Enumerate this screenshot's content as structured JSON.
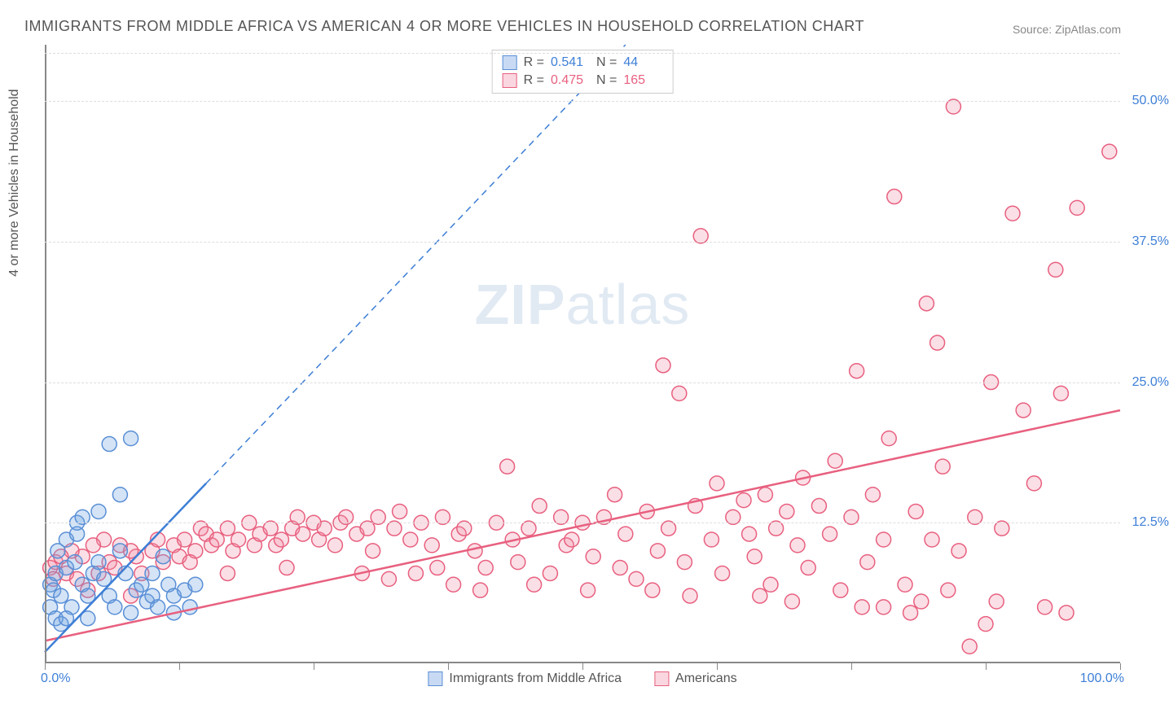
{
  "title": "IMMIGRANTS FROM MIDDLE AFRICA VS AMERICAN 4 OR MORE VEHICLES IN HOUSEHOLD CORRELATION CHART",
  "source_label": "Source: ",
  "source_name": "ZipAtlas.com",
  "y_axis_label": "4 or more Vehicles in Household",
  "watermark_left": "ZIP",
  "watermark_right": "atlas",
  "stats": {
    "series1": {
      "r_label": "R =",
      "r_value": "0.541",
      "n_label": "N =",
      "n_value": "44"
    },
    "series2": {
      "r_label": "R =",
      "r_value": "0.475",
      "n_label": "N =",
      "n_value": "165"
    }
  },
  "legend": {
    "series1": "Immigrants from Middle Africa",
    "series2": "Americans"
  },
  "chart": {
    "type": "scatter",
    "xlim": [
      0,
      100
    ],
    "ylim": [
      0,
      55
    ],
    "x_tick_labels": {
      "min": "0.0%",
      "max": "100.0%"
    },
    "y_ticks": [
      12.5,
      25.0,
      37.5,
      50.0
    ],
    "y_tick_labels": [
      "12.5%",
      "25.0%",
      "37.5%",
      "50.0%"
    ],
    "x_tick_positions": [
      0,
      12.5,
      25,
      37.5,
      50,
      62.5,
      75,
      87.5,
      100
    ],
    "background_color": "#ffffff",
    "grid_color": "#dddddd",
    "axis_label_color": "#3e7fd6",
    "marker_radius": 9,
    "marker_stroke_width": 1.5,
    "series1_fill": "rgba(112,165,225,0.30)",
    "series1_stroke": "#5a8fd6",
    "series2_fill": "rgba(240,140,165,0.28)",
    "series2_stroke": "#e8607f",
    "trend1_color": "#3e7fd6",
    "trend1_width": 2.5,
    "trend1_dash_from_x": 15,
    "trend1_slope": 1.0,
    "trend1_intercept": 1.0,
    "trend2_color": "#e8607f",
    "trend2_width": 2.5,
    "trend2_slope": 0.205,
    "trend2_intercept": 2.0,
    "series1_points": [
      [
        0.5,
        7.0
      ],
      [
        0.8,
        6.5
      ],
      [
        1.0,
        8.0
      ],
      [
        1.5,
        6.0
      ],
      [
        2.0,
        8.5
      ],
      [
        2.0,
        11.0
      ],
      [
        2.5,
        5.0
      ],
      [
        3.0,
        11.5
      ],
      [
        3.0,
        12.5
      ],
      [
        3.5,
        7.0
      ],
      [
        3.5,
        13.0
      ],
      [
        4.0,
        4.0
      ],
      [
        4.0,
        6.0
      ],
      [
        4.5,
        8.0
      ],
      [
        5.0,
        9.0
      ],
      [
        5.0,
        13.5
      ],
      [
        5.5,
        7.5
      ],
      [
        6.0,
        6.0
      ],
      [
        6.0,
        19.5
      ],
      [
        6.5,
        5.0
      ],
      [
        7.0,
        10.0
      ],
      [
        7.0,
        15.0
      ],
      [
        7.5,
        8.0
      ],
      [
        8.0,
        4.5
      ],
      [
        8.0,
        20.0
      ],
      [
        8.5,
        6.5
      ],
      [
        9.0,
        7.0
      ],
      [
        9.5,
        5.5
      ],
      [
        10.0,
        8.0
      ],
      [
        10.0,
        6.0
      ],
      [
        10.5,
        5.0
      ],
      [
        11.0,
        9.5
      ],
      [
        11.5,
        7.0
      ],
      [
        12.0,
        6.0
      ],
      [
        12.0,
        4.5
      ],
      [
        13.0,
        6.5
      ],
      [
        13.5,
        5.0
      ],
      [
        14.0,
        7.0
      ],
      [
        0.5,
        5.0
      ],
      [
        1.0,
        4.0
      ],
      [
        1.5,
        3.5
      ],
      [
        2.0,
        4.0
      ],
      [
        1.2,
        10.0
      ],
      [
        2.8,
        9.0
      ]
    ],
    "series2_points": [
      [
        0.5,
        8.5
      ],
      [
        1.0,
        9.0
      ],
      [
        2.0,
        8.0
      ],
      [
        3.0,
        7.5
      ],
      [
        3.5,
        9.5
      ],
      [
        4.0,
        6.5
      ],
      [
        5.0,
        8.0
      ],
      [
        5.5,
        11.0
      ],
      [
        6.0,
        9.0
      ],
      [
        6.5,
        8.5
      ],
      [
        7.0,
        10.5
      ],
      [
        8.0,
        6.0
      ],
      [
        8.5,
        9.5
      ],
      [
        9.0,
        8.0
      ],
      [
        10.0,
        10.0
      ],
      [
        10.5,
        11.0
      ],
      [
        11.0,
        9.0
      ],
      [
        12.0,
        10.5
      ],
      [
        12.5,
        9.5
      ],
      [
        13.0,
        11.0
      ],
      [
        14.0,
        10.0
      ],
      [
        14.5,
        12.0
      ],
      [
        15.0,
        11.5
      ],
      [
        15.5,
        10.5
      ],
      [
        16.0,
        11.0
      ],
      [
        17.0,
        12.0
      ],
      [
        17.5,
        10.0
      ],
      [
        18.0,
        11.0
      ],
      [
        19.0,
        12.5
      ],
      [
        19.5,
        10.5
      ],
      [
        20.0,
        11.5
      ],
      [
        21.0,
        12.0
      ],
      [
        21.5,
        10.5
      ],
      [
        22.0,
        11.0
      ],
      [
        23.0,
        12.0
      ],
      [
        23.5,
        13.0
      ],
      [
        24.0,
        11.5
      ],
      [
        25.0,
        12.5
      ],
      [
        25.5,
        11.0
      ],
      [
        26.0,
        12.0
      ],
      [
        27.0,
        10.5
      ],
      [
        27.5,
        12.5
      ],
      [
        28.0,
        13.0
      ],
      [
        29.0,
        11.5
      ],
      [
        30.0,
        12.0
      ],
      [
        30.5,
        10.0
      ],
      [
        31.0,
        13.0
      ],
      [
        32.0,
        7.5
      ],
      [
        32.5,
        12.0
      ],
      [
        33.0,
        13.5
      ],
      [
        34.0,
        11.0
      ],
      [
        34.5,
        8.0
      ],
      [
        35.0,
        12.5
      ],
      [
        36.0,
        10.5
      ],
      [
        37.0,
        13.0
      ],
      [
        38.0,
        7.0
      ],
      [
        38.5,
        11.5
      ],
      [
        39.0,
        12.0
      ],
      [
        40.0,
        10.0
      ],
      [
        41.0,
        8.5
      ],
      [
        42.0,
        12.5
      ],
      [
        43.0,
        17.5
      ],
      [
        43.5,
        11.0
      ],
      [
        44.0,
        9.0
      ],
      [
        45.0,
        12.0
      ],
      [
        46.0,
        14.0
      ],
      [
        47.0,
        8.0
      ],
      [
        48.0,
        13.0
      ],
      [
        48.5,
        10.5
      ],
      [
        49.0,
        11.0
      ],
      [
        50.0,
        12.5
      ],
      [
        51.0,
        9.5
      ],
      [
        52.0,
        13.0
      ],
      [
        53.0,
        15.0
      ],
      [
        53.5,
        8.5
      ],
      [
        54.0,
        11.5
      ],
      [
        55.0,
        7.5
      ],
      [
        56.0,
        13.5
      ],
      [
        57.0,
        10.0
      ],
      [
        57.5,
        26.5
      ],
      [
        58.0,
        12.0
      ],
      [
        59.0,
        24.0
      ],
      [
        59.5,
        9.0
      ],
      [
        60.5,
        14.0
      ],
      [
        61.0,
        38.0
      ],
      [
        62.0,
        11.0
      ],
      [
        62.5,
        16.0
      ],
      [
        63.0,
        8.0
      ],
      [
        64.0,
        13.0
      ],
      [
        65.0,
        14.5
      ],
      [
        65.5,
        11.5
      ],
      [
        66.0,
        9.5
      ],
      [
        67.0,
        15.0
      ],
      [
        67.5,
        7.0
      ],
      [
        68.0,
        12.0
      ],
      [
        69.0,
        13.5
      ],
      [
        70.0,
        10.5
      ],
      [
        70.5,
        16.5
      ],
      [
        71.0,
        8.5
      ],
      [
        72.0,
        14.0
      ],
      [
        73.0,
        11.5
      ],
      [
        73.5,
        18.0
      ],
      [
        74.0,
        6.5
      ],
      [
        75.0,
        13.0
      ],
      [
        75.5,
        26.0
      ],
      [
        76.0,
        5.0
      ],
      [
        76.5,
        9.0
      ],
      [
        77.0,
        15.0
      ],
      [
        78.0,
        11.0
      ],
      [
        78.5,
        20.0
      ],
      [
        79.0,
        41.5
      ],
      [
        80.0,
        7.0
      ],
      [
        80.5,
        4.5
      ],
      [
        81.0,
        13.5
      ],
      [
        81.5,
        5.5
      ],
      [
        82.0,
        32.0
      ],
      [
        82.5,
        11.0
      ],
      [
        83.0,
        28.5
      ],
      [
        83.5,
        17.5
      ],
      [
        84.0,
        6.5
      ],
      [
        84.5,
        49.5
      ],
      [
        85.0,
        10.0
      ],
      [
        86.0,
        1.5
      ],
      [
        86.5,
        13.0
      ],
      [
        87.5,
        3.5
      ],
      [
        88.0,
        25.0
      ],
      [
        90.0,
        40.0
      ],
      [
        92.0,
        16.0
      ],
      [
        93.0,
        5.0
      ],
      [
        94.0,
        35.0
      ],
      [
        94.5,
        24.0
      ],
      [
        96.0,
        40.5
      ],
      [
        99.0,
        45.5
      ],
      [
        95.0,
        4.5
      ],
      [
        88.5,
        5.5
      ],
      [
        78.0,
        5.0
      ],
      [
        69.5,
        5.5
      ],
      [
        66.5,
        6.0
      ],
      [
        60.0,
        6.0
      ],
      [
        56.5,
        6.5
      ],
      [
        50.5,
        6.5
      ],
      [
        45.5,
        7.0
      ],
      [
        40.5,
        6.5
      ],
      [
        36.5,
        8.5
      ],
      [
        29.5,
        8.0
      ],
      [
        22.5,
        8.5
      ],
      [
        17.0,
        8.0
      ],
      [
        13.5,
        9.0
      ],
      [
        8.0,
        10.0
      ],
      [
        4.5,
        10.5
      ],
      [
        2.5,
        10.0
      ],
      [
        1.5,
        9.5
      ],
      [
        0.8,
        7.5
      ],
      [
        89.0,
        12.0
      ],
      [
        91.0,
        22.5
      ]
    ]
  }
}
